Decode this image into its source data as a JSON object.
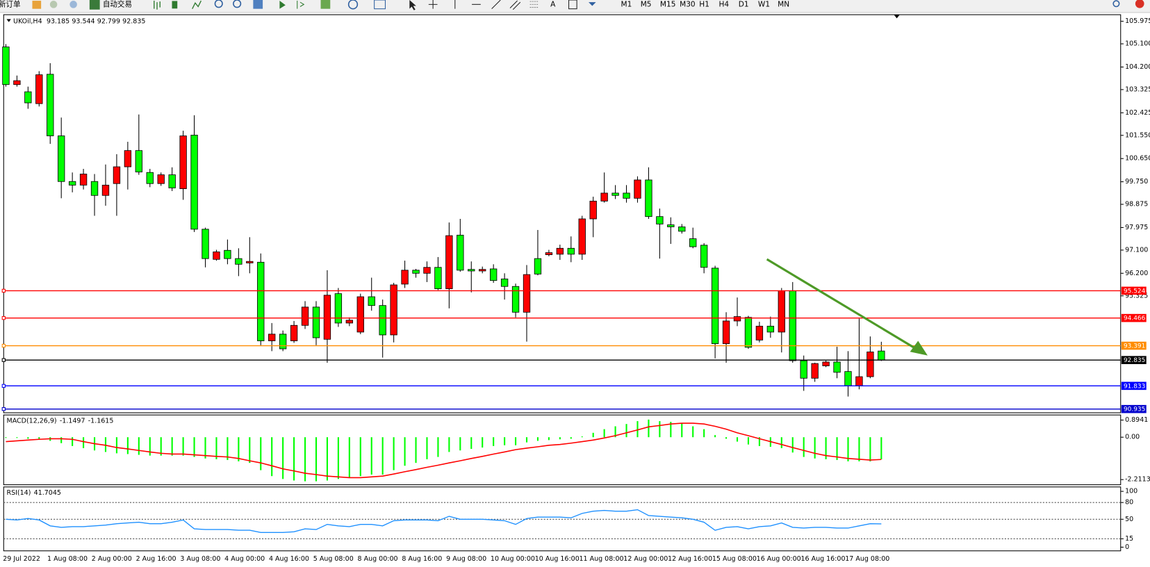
{
  "toolbar": {
    "new_order": "新订单",
    "auto_trading": "自动交易",
    "timeframes": [
      "M1",
      "M5",
      "M15",
      "M30",
      "H1",
      "H4",
      "D1",
      "W1",
      "MN"
    ]
  },
  "chart_data": [
    {
      "type": "candlestick",
      "title": "UKOil,H4",
      "categories": [
        "29 Jul 2022",
        null,
        null,
        null,
        "1 Aug 08:00",
        null,
        null,
        null,
        "2 Aug 00:00",
        null,
        null,
        null,
        "2 Aug 16:00",
        null,
        null,
        null,
        "3 Aug 08:00",
        null,
        null,
        null,
        "4 Aug 00:00",
        null,
        null,
        null,
        "4 Aug 16:00",
        null,
        null,
        null,
        "5 Aug 08:00",
        null,
        null,
        null,
        "8 Aug 00:00",
        null,
        null,
        null,
        "8 Aug 16:00",
        null,
        null,
        null,
        "9 Aug 08:00",
        null,
        null,
        null,
        "10 Aug 00:00",
        null,
        null,
        null,
        "10 Aug 16:00",
        null,
        null,
        null,
        "11 Aug 08:00",
        null,
        null,
        null,
        "12 Aug 00:00",
        null,
        null,
        null,
        "12 Aug 16:00",
        null,
        null,
        null,
        "15 Aug 08:00",
        null,
        null,
        null,
        "16 Aug 00:00",
        null,
        null,
        null,
        "16 Aug 16:00",
        null,
        null,
        null,
        "17 Aug 08:00",
        null,
        null,
        null
      ],
      "open": [
        104.98,
        103.52,
        103.24,
        102.78,
        103.92,
        101.53,
        99.76,
        99.62,
        99.76,
        99.22,
        99.68,
        100.33,
        100.96,
        100.11,
        99.68,
        100.02,
        99.48,
        101.56,
        97.91,
        96.74,
        97.09,
        96.77,
        96.6,
        96.63,
        93.58,
        93.84,
        93.58,
        94.18,
        94.89,
        93.64,
        95.41,
        94.27,
        93.92,
        95.29,
        94.95,
        93.81,
        95.78,
        96.32,
        96.2,
        96.43,
        95.6,
        97.68,
        96.35,
        96.29,
        96.37,
        95.98,
        95.69,
        94.69,
        96.77,
        96.92,
        96.94,
        97.17,
        96.94,
        98.31,
        99.0,
        99.31,
        99.31,
        99.11,
        99.82,
        98.4,
        98.08,
        98.0,
        97.54,
        97.29,
        96.4,
        93.47,
        94.35,
        94.49,
        93.61,
        94.15,
        93.92,
        95.52,
        92.81,
        92.13,
        92.61,
        92.76,
        92.39,
        91.84,
        92.19,
        93.185
      ],
      "high": [
        105.09,
        103.87,
        103.44,
        104.04,
        104.35,
        102.24,
        100.11,
        100.25,
        100.05,
        100.42,
        100.82,
        101.3,
        102.36,
        100.25,
        100.11,
        100.31,
        101.73,
        102.33,
        97.97,
        97.11,
        97.51,
        97.17,
        97.6,
        96.97,
        94.27,
        93.98,
        94.35,
        95.12,
        95.12,
        96.32,
        95.63,
        94.49,
        95.41,
        96.03,
        95.18,
        95.83,
        96.69,
        96.37,
        96.66,
        96.83,
        98.17,
        98.31,
        96.66,
        96.46,
        96.55,
        96.2,
        95.8,
        96.52,
        97.88,
        97.11,
        97.31,
        97.63,
        98.43,
        99.17,
        100.11,
        99.62,
        99.62,
        99.96,
        100.31,
        98.71,
        98.37,
        98.11,
        97.97,
        97.37,
        96.49,
        94.69,
        95.26,
        94.55,
        94.32,
        94.52,
        95.63,
        95.86,
        93.01,
        92.73,
        92.81,
        93.35,
        93.18,
        94.44,
        93.75,
        93.544
      ],
      "low": [
        103.44,
        103.44,
        102.58,
        102.67,
        101.22,
        99.11,
        99.34,
        99.45,
        98.43,
        98.82,
        98.43,
        99.45,
        100.02,
        99.54,
        99.59,
        99.39,
        99.05,
        97.8,
        96.43,
        96.69,
        96.55,
        96.09,
        96.2,
        93.41,
        93.18,
        93.18,
        93.5,
        94.04,
        93.41,
        92.73,
        94.12,
        94.15,
        93.84,
        94.75,
        92.93,
        93.52,
        95.63,
        96.03,
        95.86,
        95.55,
        94.84,
        96.26,
        95.46,
        96.2,
        95.83,
        95.18,
        94.49,
        93.55,
        96.12,
        96.86,
        96.72,
        96.63,
        96.72,
        97.6,
        98.94,
        99.08,
        98.94,
        98.94,
        98.31,
        96.77,
        97.34,
        97.74,
        97.17,
        96.2,
        92.9,
        92.73,
        94.15,
        93.27,
        93.52,
        93.7,
        93.13,
        92.73,
        91.64,
        91.99,
        92.56,
        92.13,
        91.42,
        91.7,
        92.13,
        92.799
      ],
      "close": [
        103.52,
        103.67,
        102.81,
        103.9,
        101.53,
        99.76,
        99.62,
        100.05,
        99.22,
        99.62,
        100.33,
        100.96,
        100.13,
        99.68,
        100.02,
        99.51,
        101.53,
        97.91,
        96.77,
        97.03,
        96.77,
        96.55,
        96.66,
        93.58,
        93.84,
        93.27,
        94.18,
        94.89,
        93.7,
        95.35,
        94.27,
        94.38,
        95.29,
        94.95,
        93.81,
        95.75,
        96.32,
        96.2,
        96.43,
        95.6,
        97.66,
        96.32,
        96.29,
        96.35,
        95.92,
        95.69,
        94.69,
        96.15,
        96.17,
        97.0,
        97.17,
        96.94,
        98.31,
        99.0,
        99.31,
        99.22,
        99.11,
        99.82,
        98.4,
        98.11,
        98.0,
        97.83,
        97.23,
        96.43,
        93.47,
        94.35,
        94.52,
        93.33,
        94.15,
        93.92,
        95.52,
        92.81,
        92.13,
        92.7,
        92.76,
        92.36,
        91.84,
        92.19,
        93.15,
        92.835
      ],
      "up_color": "#ff0000",
      "down_color": "#00ff00",
      "ylim": [
        90.79,
        106.23
      ],
      "yticks": [
        105.975,
        {
          "value": 105.1,
          "label": "105.100"
        },
        {
          "value": 104.2,
          "label": "104.200"
        },
        103.325,
        102.425,
        {
          "value": 101.55,
          "label": "101.550"
        },
        {
          "value": 100.65,
          "label": "100.650"
        },
        {
          "value": 99.75,
          "label": "99.750"
        },
        98.875,
        97.975,
        {
          "value": 97.1,
          "label": "97.100"
        },
        {
          "value": 96.2,
          "label": "96.200"
        },
        95.325
      ],
      "grid": false,
      "levels": [
        {
          "value": 95.524,
          "color": "#ff0000"
        },
        {
          "value": 94.466,
          "color": "#ff0000"
        },
        {
          "value": 93.391,
          "color": "#ff8c00"
        },
        {
          "value": 92.835,
          "color": "#000000"
        },
        {
          "value": 91.833,
          "color": "#0000ff"
        },
        {
          "value": 90.935,
          "color": "#0000cd"
        }
      ]
    },
    {
      "type": "macd",
      "title": "MACD(12,26,9)",
      "histogram": {
        "color": "#00ff00",
        "values": [
          -0.04,
          -0.04,
          -0.08,
          -0.08,
          -0.19,
          -0.31,
          -0.46,
          -0.57,
          -0.69,
          -0.77,
          -0.84,
          -0.88,
          -0.92,
          -0.96,
          -0.96,
          -0.96,
          -0.96,
          -1.03,
          -1.11,
          -1.15,
          -1.19,
          -1.26,
          -1.34,
          -1.72,
          -2.03,
          -2.18,
          -2.26,
          -2.3,
          -2.3,
          -2.26,
          -2.18,
          -2.11,
          -2.03,
          -1.95,
          -1.95,
          -1.72,
          -1.49,
          -1.34,
          -1.15,
          -1.03,
          -0.77,
          -0.69,
          -0.61,
          -0.54,
          -0.46,
          -0.42,
          -0.42,
          -0.27,
          -0.19,
          -0.15,
          -0.11,
          -0.08,
          0.04,
          0.23,
          0.42,
          0.57,
          0.69,
          0.84,
          0.92,
          0.84,
          0.8,
          0.73,
          0.57,
          0.42,
          0.11,
          -0.08,
          -0.23,
          -0.38,
          -0.46,
          -0.5,
          -0.57,
          -0.8,
          -1.03,
          -1.11,
          -1.15,
          -1.19,
          -1.26,
          -1.26,
          -1.26,
          -1.1497
        ]
      },
      "signal": {
        "color": "#ff0000",
        "values": [
          -0.23,
          -0.19,
          -0.15,
          -0.11,
          -0.08,
          -0.08,
          -0.11,
          -0.23,
          -0.34,
          -0.42,
          -0.54,
          -0.61,
          -0.69,
          -0.77,
          -0.84,
          -0.88,
          -0.88,
          -0.92,
          -0.96,
          -1.0,
          -1.03,
          -1.11,
          -1.23,
          -1.34,
          -1.49,
          -1.65,
          -1.76,
          -1.88,
          -1.95,
          -2.03,
          -2.07,
          -2.11,
          -2.11,
          -2.07,
          -2.03,
          -1.92,
          -1.8,
          -1.69,
          -1.57,
          -1.46,
          -1.34,
          -1.23,
          -1.11,
          -1.0,
          -0.88,
          -0.77,
          -0.65,
          -0.57,
          -0.5,
          -0.42,
          -0.38,
          -0.31,
          -0.23,
          -0.15,
          -0.04,
          0.08,
          0.23,
          0.38,
          0.54,
          0.61,
          0.69,
          0.73,
          0.73,
          0.69,
          0.57,
          0.42,
          0.23,
          0.08,
          -0.08,
          -0.23,
          -0.38,
          -0.54,
          -0.69,
          -0.84,
          -0.96,
          -1.03,
          -1.11,
          -1.15,
          -1.19,
          -1.1615
        ]
      },
      "ylim": [
        -2.48,
        1.16
      ],
      "yticks": [
        0.8941,
        {
          "value": 0,
          "label": "0.00"
        },
        -2.2113
      ]
    },
    {
      "type": "line",
      "title": "RSI(14)",
      "color": "#1e90ff",
      "values": [
        50.0,
        48.7,
        51.3,
        48.7,
        38.2,
        35.5,
        36.8,
        36.8,
        38.2,
        39.5,
        42.1,
        43.4,
        44.7,
        42.1,
        42.1,
        44.7,
        48.7,
        32.9,
        31.6,
        31.6,
        31.6,
        30.3,
        30.3,
        26.3,
        26.3,
        26.3,
        27.6,
        32.9,
        31.6,
        40.8,
        38.2,
        36.8,
        40.8,
        40.8,
        38.2,
        47.4,
        48.7,
        48.7,
        48.7,
        47.4,
        55.3,
        50.0,
        50.0,
        50.0,
        48.7,
        47.4,
        40.8,
        51.3,
        53.9,
        53.9,
        53.9,
        52.6,
        60.5,
        64.5,
        65.8,
        64.5,
        64.5,
        67.1,
        56.6,
        55.3,
        53.9,
        52.6,
        50.0,
        44.7,
        30.3,
        35.5,
        36.8,
        32.9,
        36.8,
        38.2,
        43.4,
        35.5,
        34.2,
        35.5,
        35.5,
        34.2,
        34.2,
        38.2,
        42.1,
        41.7045
      ],
      "ylim": [
        0,
        100
      ],
      "yticks": [
        100,
        80,
        50,
        15,
        0
      ],
      "levels": [
        80,
        50,
        15
      ]
    }
  ]
}
